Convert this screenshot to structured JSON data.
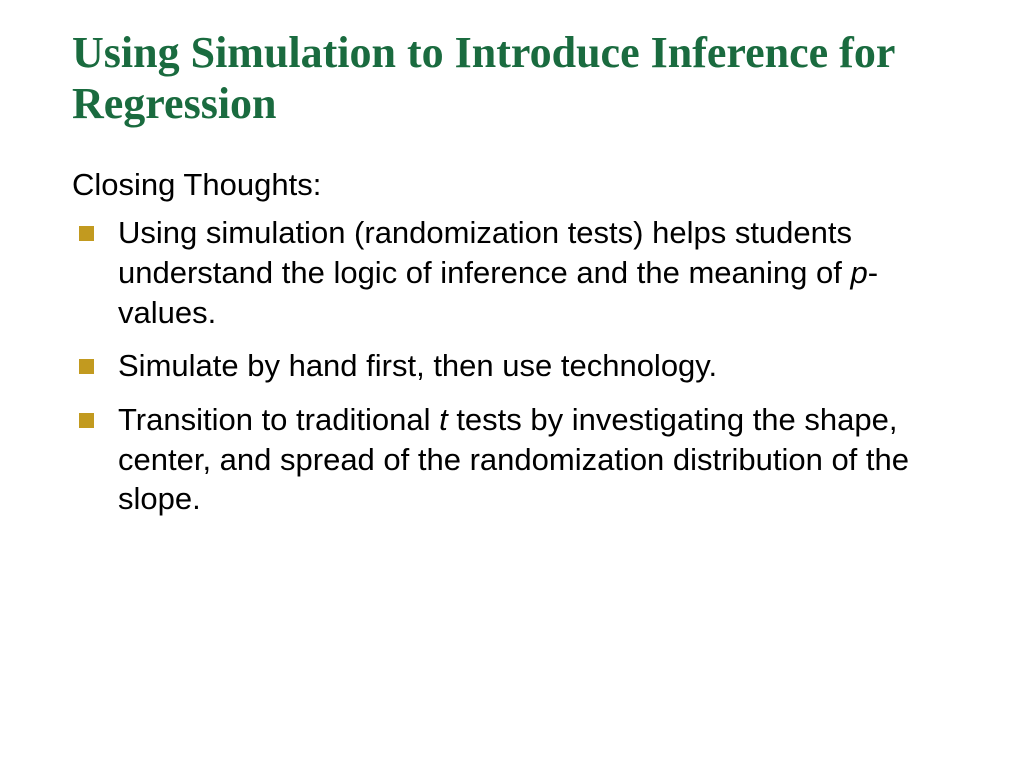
{
  "title": "Using Simulation to Introduce Inference for Regression",
  "title_color": "#1a6b3f",
  "title_fontsize": 44,
  "subheading": "Closing Thoughts:",
  "body_color": "#000000",
  "body_fontsize": 31,
  "body_lineheight": 1.28,
  "bullet_color": "#c29a1f",
  "bullets": [
    {
      "pre": "Using simulation (randomization tests) helps students understand the logic of inference and the meaning of ",
      "ital": "p",
      "post": "-values."
    },
    {
      "pre": "Simulate by hand first, then use technology.",
      "ital": "",
      "post": ""
    },
    {
      "pre": "Transition to traditional ",
      "ital": "t",
      "post": " tests by investigating the shape, center, and spread of the randomization distribution of the slope."
    }
  ],
  "background_color": "#ffffff"
}
